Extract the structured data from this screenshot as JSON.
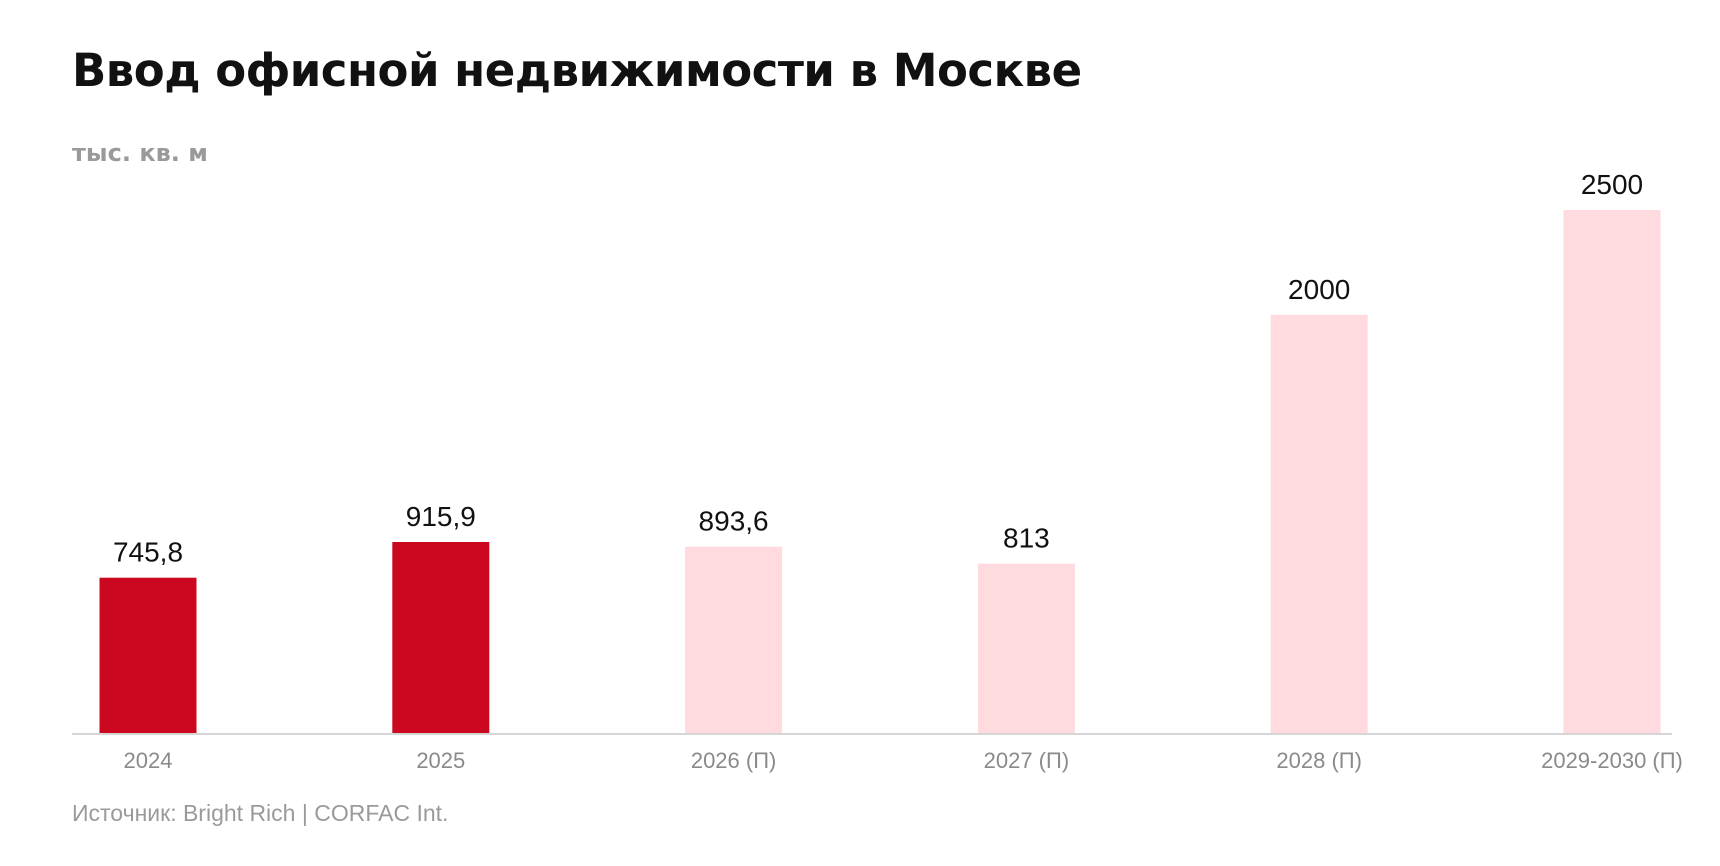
{
  "chart_data": {
    "type": "bar",
    "title": "Ввод офисной недвижимости в Москве",
    "unit_label": "тыс. кв. м",
    "source": "Источник: Bright Rich | CORFAC Int.",
    "categories": [
      "2024",
      "2025",
      "2026 (П)",
      "2027 (П)",
      "2028 (П)",
      "2029-2030 (П)"
    ],
    "values": [
      745.8,
      915.9,
      893.6,
      813,
      2000,
      2500
    ],
    "value_labels": [
      "745,8",
      "915,9",
      "893,6",
      "813",
      "2000",
      "2500"
    ],
    "forecast": [
      false,
      false,
      true,
      true,
      true,
      true
    ],
    "ylim": [
      0,
      2500
    ],
    "grid": false,
    "legend": "none",
    "colors": {
      "actual": "#cc0821",
      "forecast": "#ffdbe0",
      "axis": "#d6d6d6"
    }
  }
}
